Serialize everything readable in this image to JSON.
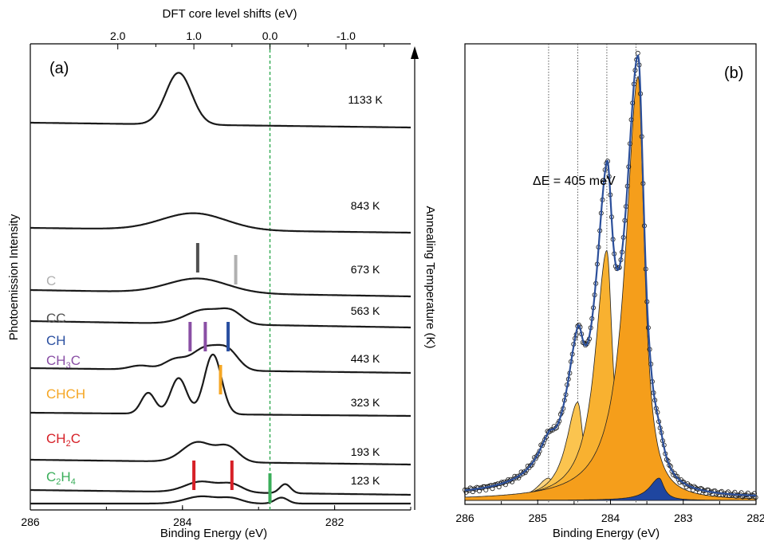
{
  "panel_a": {
    "label": "(a)",
    "top_axis_label": "DFT core level shifts (eV)",
    "top_ticks": [
      "2.0",
      "1.0",
      "0.0",
      "-1.0"
    ],
    "bottom_axis_label": "Binding Energy (eV)",
    "bottom_ticks": [
      "286",
      "284",
      "282"
    ],
    "ylabel": "Photoemission Intensity",
    "right_label": "Annealing Temperature (K)"
  },
  "panel_b": {
    "label": "(b)",
    "annotation": "ΔE = 405 meV",
    "bottom_axis_label": "Binding Energy (eV)",
    "bottom_ticks": [
      "286",
      "285",
      "284",
      "283",
      "282"
    ]
  },
  "colors": {
    "C": "#b0b0b0",
    "CC": "#505050",
    "CH": "#2a4fa0",
    "CH3C": "#8a4fa5",
    "CHCH": "#f5a623",
    "CH2C": "#d62027",
    "C2H4": "#3aae5a",
    "fit_line": "#2b4f9a",
    "dft_zero": "#3aae5a"
  },
  "chart_data": [
    {
      "type": "line",
      "panel": "a",
      "title": "",
      "xlabel": "Binding Energy (eV)",
      "xlim": [
        286,
        281
      ],
      "x_reversed": true,
      "top_xlabel": "DFT core level shifts (eV)",
      "ylabel": "Photoemission Intensity",
      "right_ylabel": "Annealing Temperature (K)",
      "series": [
        {
          "name": "1133 K",
          "peaks": [
            {
              "center": 284.05,
              "amp": 1.0,
              "width": 0.24
            }
          ]
        },
        {
          "name": "843 K",
          "peaks": [
            {
              "center": 283.85,
              "amp": 0.5,
              "width": 0.6
            }
          ]
        },
        {
          "name": "673 K",
          "peaks": [
            {
              "center": 283.8,
              "amp": 0.45,
              "width": 0.55
            }
          ]
        },
        {
          "name": "563 K",
          "peaks": [
            {
              "center": 283.7,
              "amp": 0.45,
              "width": 0.35
            },
            {
              "center": 283.35,
              "amp": 0.3,
              "width": 0.2
            }
          ]
        },
        {
          "name": "443 K",
          "peaks": [
            {
              "center": 284.55,
              "amp": 0.1,
              "width": 0.2
            },
            {
              "center": 284.1,
              "amp": 0.25,
              "width": 0.2
            },
            {
              "center": 283.7,
              "amp": 0.55,
              "width": 0.25
            },
            {
              "center": 283.4,
              "amp": 0.45,
              "width": 0.2
            }
          ]
        },
        {
          "name": "323 K",
          "peaks": [
            {
              "center": 284.45,
              "amp": 0.35,
              "width": 0.13
            },
            {
              "center": 284.05,
              "amp": 0.6,
              "width": 0.15
            },
            {
              "center": 283.6,
              "amp": 1.0,
              "width": 0.16
            }
          ]
        },
        {
          "name": "193 K",
          "peaks": [
            {
              "center": 283.8,
              "amp": 0.55,
              "width": 0.28
            },
            {
              "center": 283.4,
              "amp": 0.4,
              "width": 0.2
            }
          ]
        },
        {
          "name": "123 K",
          "peaks": [
            {
              "center": 283.75,
              "amp": 0.35,
              "width": 0.3
            },
            {
              "center": 283.35,
              "amp": 0.25,
              "width": 0.2
            },
            {
              "center": 282.65,
              "amp": 0.3,
              "width": 0.1
            }
          ]
        }
      ],
      "species_labels": [
        {
          "name": "C",
          "color": "#b0b0b0"
        },
        {
          "name": "CC",
          "color": "#505050"
        },
        {
          "name": "CH",
          "color": "#2a4fa0"
        },
        {
          "name": "CH3C",
          "text": "CH",
          "sub": "3",
          "tail": "C",
          "color": "#8a4fa5"
        },
        {
          "name": "CHCH",
          "color": "#f5a623"
        },
        {
          "name": "CH2C",
          "text": "CH",
          "sub": "2",
          "tail": "C",
          "color": "#d62027"
        },
        {
          "name": "C2H4",
          "text": "C",
          "sub": "2",
          "tail": "H",
          "sub2": "4",
          "color": "#3aae5a"
        }
      ],
      "dft_markers": [
        {
          "species": "CC",
          "energy": 283.8
        },
        {
          "species": "C",
          "energy": 283.3
        },
        {
          "species": "CH3C",
          "energy": 283.9
        },
        {
          "species": "CH3C",
          "energy": 283.7
        },
        {
          "species": "CH",
          "energy": 283.4
        },
        {
          "species": "CHCH",
          "energy": 283.5
        },
        {
          "species": "CH2C",
          "energy": 283.85
        },
        {
          "species": "CH2C",
          "energy": 283.35
        },
        {
          "species": "C2H4",
          "energy": 282.85
        }
      ],
      "dft_zero_energy": 282.85
    },
    {
      "type": "line",
      "panel": "b",
      "title": "",
      "xlabel": "Binding Energy (eV)",
      "xlim": [
        286,
        282
      ],
      "x_reversed": true,
      "annotation": "ΔE = 405 meV",
      "reference_lines": [
        284.85,
        284.45,
        284.05,
        283.65
      ],
      "components": [
        {
          "center": 284.85,
          "amp": 0.05,
          "width": 0.12,
          "color": "#fcd47e"
        },
        {
          "center": 284.45,
          "amp": 0.22,
          "width": 0.12,
          "color": "#fbc44f"
        },
        {
          "center": 284.05,
          "amp": 0.56,
          "width": 0.12,
          "color": "#f8b130"
        },
        {
          "center": 283.62,
          "amp": 0.95,
          "width": 0.13,
          "color": "#f59e1b"
        },
        {
          "center": 283.33,
          "amp": 0.05,
          "width": 0.1,
          "color": "#1f46a0"
        }
      ]
    }
  ]
}
